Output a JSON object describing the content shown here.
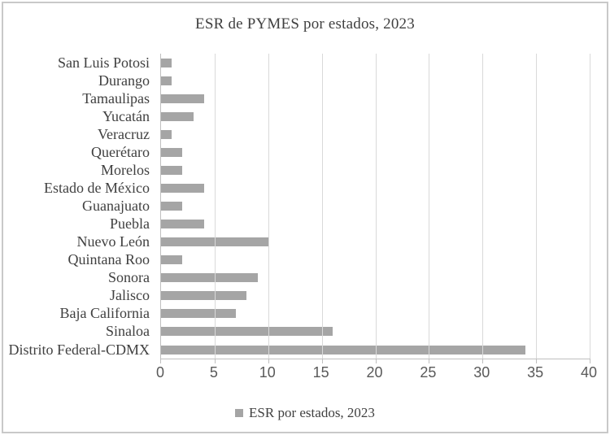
{
  "page": {
    "background": "#ffffff",
    "border_color": "#c9c9c9"
  },
  "chart_data": {
    "type": "bar",
    "orientation": "horizontal",
    "title": "ESR de PYMES por estados, 2023",
    "categories": [
      "San Luis Potosi",
      "Durango",
      "Tamaulipas",
      "Yucatán",
      "Veracruz",
      "Querétaro",
      "Morelos",
      "Estado de México",
      "Guanajuato",
      "Puebla",
      "Nuevo León",
      "Quintana Roo",
      "Sonora",
      "Jalisco",
      "Baja California",
      "Sinaloa",
      "Distrito Federal-CDMX"
    ],
    "values": [
      1,
      1,
      4,
      3,
      1,
      2,
      2,
      4,
      2,
      4,
      10,
      2,
      9,
      8,
      7,
      16,
      34
    ],
    "xlabel": "",
    "ylabel": "",
    "xlim": [
      0,
      40
    ],
    "xticks": [
      0,
      5,
      10,
      15,
      20,
      25,
      30,
      35,
      40
    ],
    "grid": "vertical-major",
    "legend": {
      "position": "bottom",
      "entries": [
        {
          "label": "ESR por estados, 2023",
          "marker_color": "#a5a5a5"
        }
      ]
    },
    "colors": {
      "bar": "#a5a5a5",
      "gridline": "#d9d9d9",
      "axis_line": "#bfbfbf",
      "title_text": "#404040",
      "category_text": "#404040",
      "tick_text": "#595959"
    }
  }
}
